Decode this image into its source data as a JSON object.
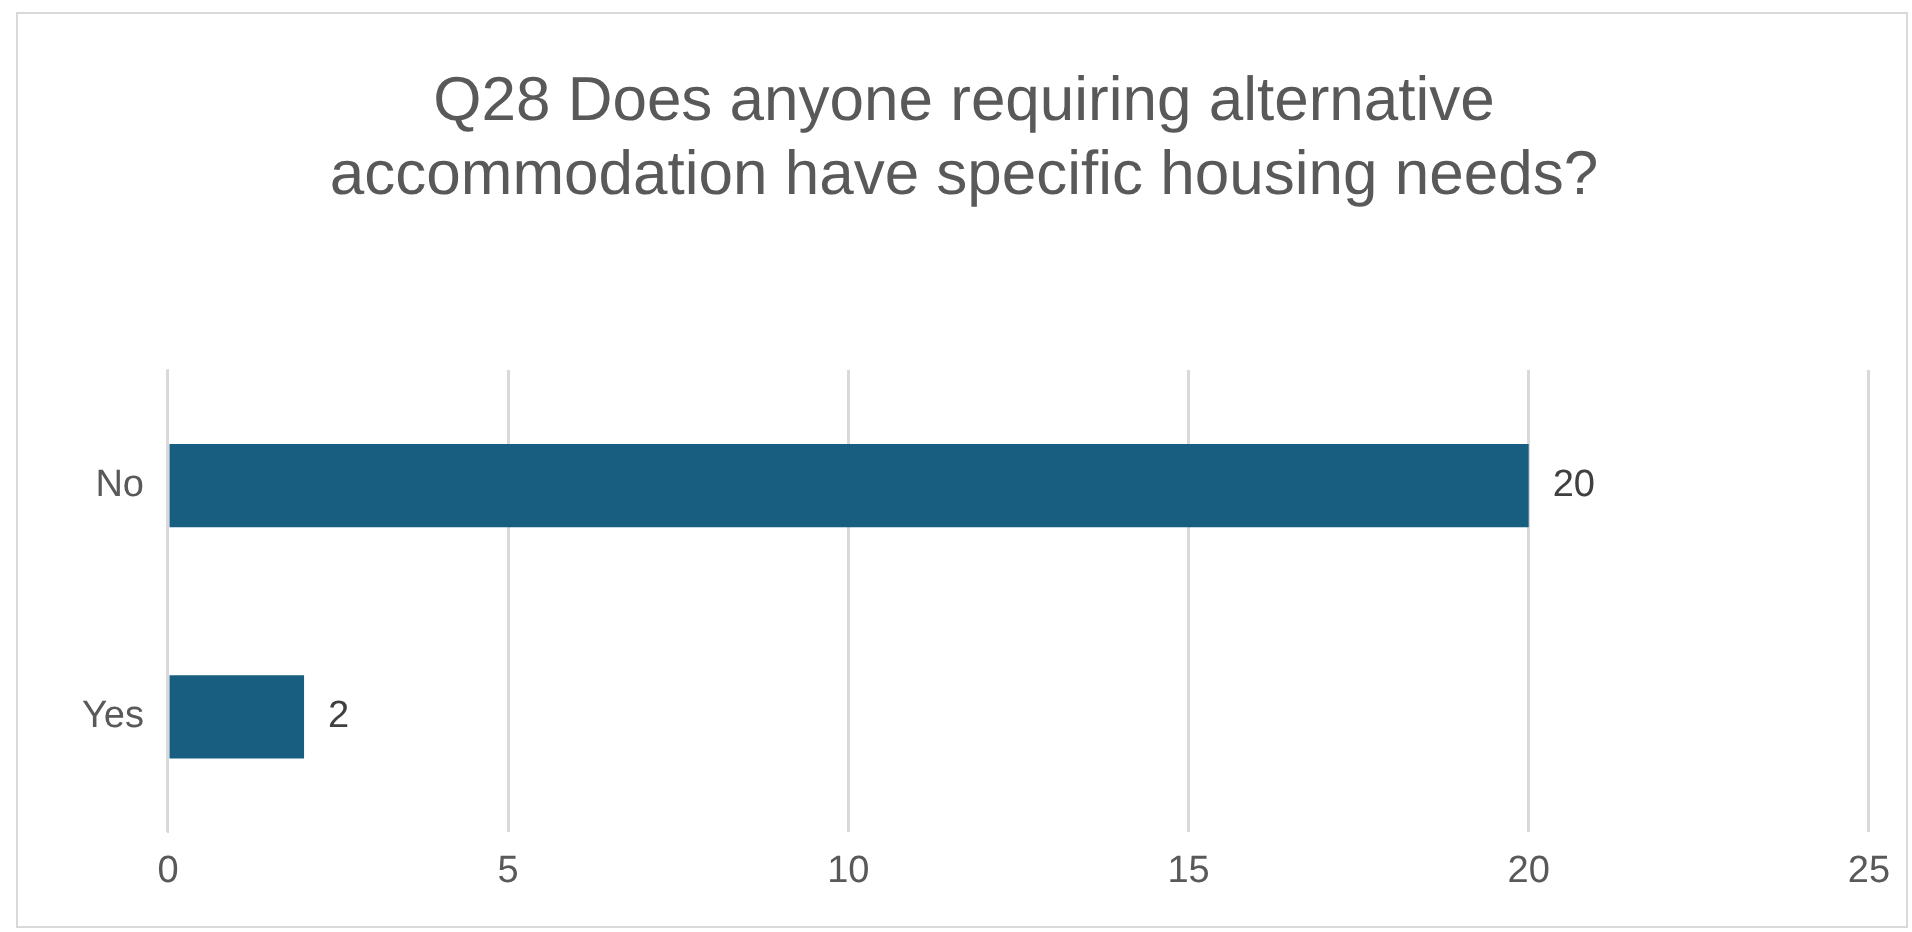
{
  "chart_data": {
    "type": "bar",
    "orientation": "horizontal",
    "title": "Q28 Does anyone requiring alternative accommodation have specific housing needs?",
    "categories": [
      "No",
      "Yes"
    ],
    "values": [
      20,
      2
    ],
    "color": "#175e80",
    "xlim": [
      0,
      25
    ],
    "xticks": [
      0,
      5,
      10,
      15,
      20,
      25
    ],
    "grid": "x",
    "legend": false,
    "data_labels": true
  }
}
